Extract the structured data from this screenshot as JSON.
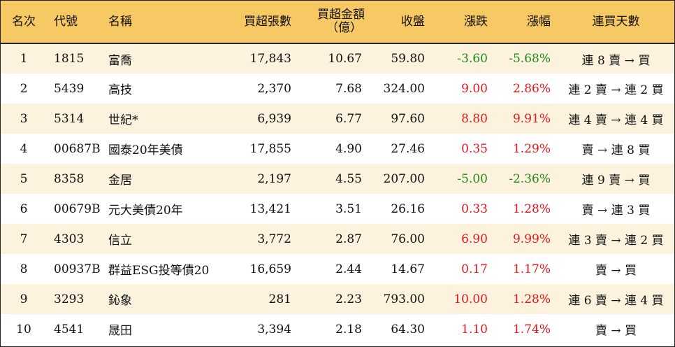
{
  "colors": {
    "header_bg": "#f7c964",
    "stripe_bg": "#fcf2dd",
    "up": "#e8141b",
    "down": "#1a8a16"
  },
  "headers": {
    "rank": "名次",
    "code": "代號",
    "name": "名稱",
    "shares": "買超張數",
    "amount_line1": "買超金額",
    "amount_line2": "（億）",
    "close": "收盤",
    "change": "漲跌",
    "pct": "漲幅",
    "days": "連買天數"
  },
  "rows": [
    {
      "rank": "1",
      "code": "1815",
      "name": "富喬",
      "shares": "17,843",
      "amount": "10.67",
      "close": "59.80",
      "change": "-3.60",
      "pct": "-5.68%",
      "days": "連 8 賣 → 買",
      "dir": "down"
    },
    {
      "rank": "2",
      "code": "5439",
      "name": "高技",
      "shares": "2,370",
      "amount": "7.68",
      "close": "324.00",
      "change": "9.00",
      "pct": "2.86%",
      "days": "連 2 賣 → 連 2 買",
      "dir": "up"
    },
    {
      "rank": "3",
      "code": "5314",
      "name": "世紀*",
      "shares": "6,939",
      "amount": "6.77",
      "close": "97.60",
      "change": "8.80",
      "pct": "9.91%",
      "days": "連 4 賣 → 連 4 買",
      "dir": "up"
    },
    {
      "rank": "4",
      "code": "00687B",
      "name": "國泰20年美債",
      "shares": "17,855",
      "amount": "4.90",
      "close": "27.46",
      "change": "0.35",
      "pct": "1.29%",
      "days": "賣 → 連 8 買",
      "dir": "up"
    },
    {
      "rank": "5",
      "code": "8358",
      "name": "金居",
      "shares": "2,197",
      "amount": "4.55",
      "close": "207.00",
      "change": "-5.00",
      "pct": "-2.36%",
      "days": "連 9 賣 → 買",
      "dir": "down"
    },
    {
      "rank": "6",
      "code": "00679B",
      "name": "元大美債20年",
      "shares": "13,421",
      "amount": "3.51",
      "close": "26.16",
      "change": "0.33",
      "pct": "1.28%",
      "days": "賣 → 連 3 買",
      "dir": "up"
    },
    {
      "rank": "7",
      "code": "4303",
      "name": "信立",
      "shares": "3,772",
      "amount": "2.87",
      "close": "76.00",
      "change": "6.90",
      "pct": "9.99%",
      "days": "連 3 賣 → 連 2 買",
      "dir": "up"
    },
    {
      "rank": "8",
      "code": "00937B",
      "name": "群益ESG投等債20",
      "shares": "16,659",
      "amount": "2.44",
      "close": "14.67",
      "change": "0.17",
      "pct": "1.17%",
      "days": "賣 → 買",
      "dir": "up"
    },
    {
      "rank": "9",
      "code": "3293",
      "name": "鈊象",
      "shares": "281",
      "amount": "2.23",
      "close": "793.00",
      "change": "10.00",
      "pct": "1.28%",
      "days": "連 6 賣 → 連 4 買",
      "dir": "up"
    },
    {
      "rank": "10",
      "code": "4541",
      "name": "晟田",
      "shares": "3,394",
      "amount": "2.18",
      "close": "64.30",
      "change": "1.10",
      "pct": "1.74%",
      "days": "賣 → 買",
      "dir": "up"
    }
  ]
}
